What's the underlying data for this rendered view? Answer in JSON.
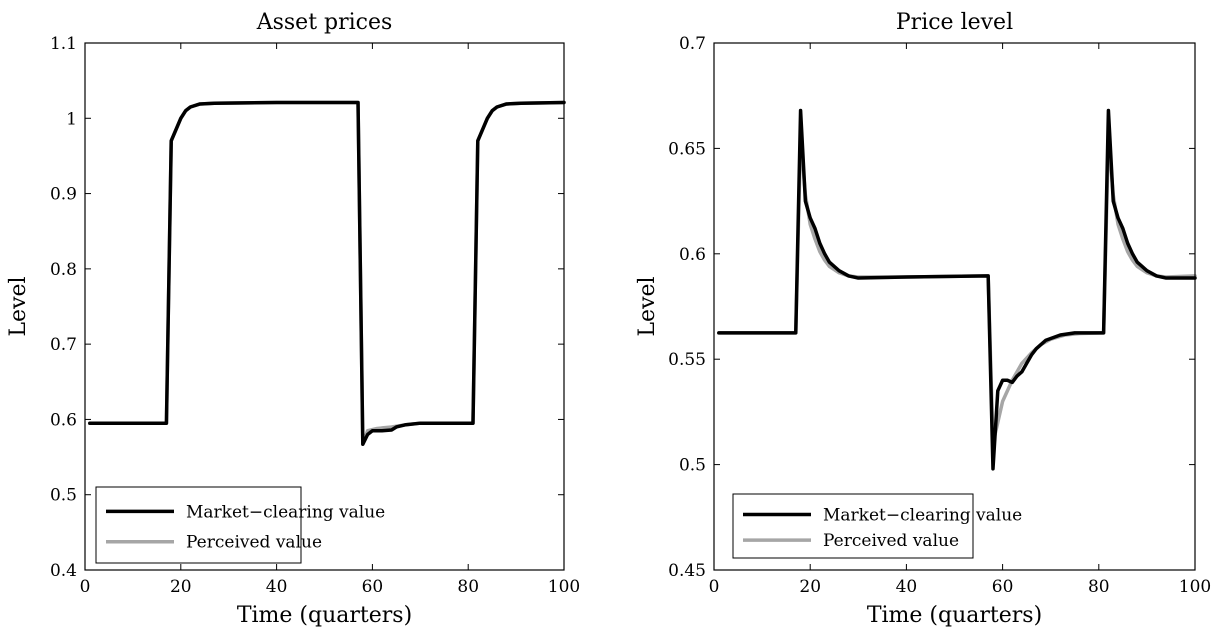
{
  "chart_data": [
    {
      "type": "line",
      "title": "Asset prices",
      "xlabel": "Time (quarters)",
      "ylabel": "Level",
      "xlim": [
        0,
        100
      ],
      "ylim": [
        0.4,
        1.1
      ],
      "xticks": [
        0,
        20,
        40,
        60,
        80,
        100
      ],
      "yticks": [
        0.4,
        0.5,
        0.6,
        0.7,
        0.8,
        0.9,
        1.0,
        1.1
      ],
      "ytick_labels": [
        "0.4",
        "0.5",
        "0.6",
        "0.7",
        "0.8",
        "0.9",
        "1",
        "1.1"
      ],
      "legend_placement": "lower-left",
      "series": [
        {
          "name": "Market−clearing value",
          "color": "#000000",
          "points": [
            [
              1,
              0.595
            ],
            [
              17,
              0.595
            ],
            [
              18,
              0.97
            ],
            [
              19,
              0.985
            ],
            [
              20,
              1.0
            ],
            [
              21,
              1.01
            ],
            [
              22,
              1.015
            ],
            [
              24,
              1.019
            ],
            [
              27,
              1.02
            ],
            [
              40,
              1.021
            ],
            [
              57,
              1.021
            ],
            [
              58,
              0.567
            ],
            [
              59,
              0.58
            ],
            [
              60,
              0.585
            ],
            [
              62,
              0.585
            ],
            [
              64,
              0.586
            ],
            [
              65,
              0.59
            ],
            [
              67,
              0.593
            ],
            [
              70,
              0.595
            ],
            [
              81,
              0.595
            ],
            [
              82,
              0.97
            ],
            [
              83,
              0.985
            ],
            [
              84,
              1.0
            ],
            [
              85,
              1.01
            ],
            [
              86,
              1.015
            ],
            [
              88,
              1.019
            ],
            [
              91,
              1.02
            ],
            [
              100,
              1.021
            ]
          ]
        },
        {
          "name": "Perceived value",
          "color": "#a6a6a6",
          "points": [
            [
              1,
              0.595
            ],
            [
              17,
              0.595
            ],
            [
              18,
              0.97
            ],
            [
              19,
              0.985
            ],
            [
              20,
              1.0
            ],
            [
              21,
              1.01
            ],
            [
              22,
              1.015
            ],
            [
              24,
              1.019
            ],
            [
              27,
              1.02
            ],
            [
              40,
              1.021
            ],
            [
              57,
              1.021
            ],
            [
              58,
              0.567
            ],
            [
              59,
              0.585
            ],
            [
              61,
              0.588
            ],
            [
              64,
              0.59
            ],
            [
              67,
              0.593
            ],
            [
              70,
              0.595
            ],
            [
              81,
              0.595
            ],
            [
              82,
              0.97
            ],
            [
              83,
              0.985
            ],
            [
              84,
              1.0
            ],
            [
              85,
              1.01
            ],
            [
              86,
              1.015
            ],
            [
              88,
              1.019
            ],
            [
              91,
              1.02
            ],
            [
              100,
              1.021
            ]
          ]
        }
      ]
    },
    {
      "type": "line",
      "title": "Price level",
      "xlabel": "Time (quarters)",
      "ylabel": "Level",
      "xlim": [
        0,
        100
      ],
      "ylim": [
        0.45,
        0.7
      ],
      "xticks": [
        0,
        20,
        40,
        60,
        80,
        100
      ],
      "yticks": [
        0.45,
        0.5,
        0.55,
        0.6,
        0.65,
        0.7
      ],
      "ytick_labels": [
        "0.45",
        "0.5",
        "0.55",
        "0.6",
        "0.65",
        "0.7"
      ],
      "legend_placement": "lower-left",
      "series": [
        {
          "name": "Market−clearing value",
          "color": "#000000",
          "points": [
            [
              1,
              0.5625
            ],
            [
              17,
              0.5625
            ],
            [
              18,
              0.668
            ],
            [
              19,
              0.625
            ],
            [
              20,
              0.617
            ],
            [
              21,
              0.612
            ],
            [
              22,
              0.605
            ],
            [
              23,
              0.6
            ],
            [
              24,
              0.596
            ],
            [
              26,
              0.592
            ],
            [
              28,
              0.5895
            ],
            [
              30,
              0.5885
            ],
            [
              40,
              0.589
            ],
            [
              57,
              0.5895
            ],
            [
              58,
              0.498
            ],
            [
              59,
              0.535
            ],
            [
              60,
              0.54
            ],
            [
              61,
              0.54
            ],
            [
              62,
              0.539
            ],
            [
              63,
              0.542
            ],
            [
              64,
              0.544
            ],
            [
              65,
              0.548
            ],
            [
              66,
              0.552
            ],
            [
              67,
              0.555
            ],
            [
              69,
              0.559
            ],
            [
              72,
              0.5615
            ],
            [
              75,
              0.5625
            ],
            [
              81,
              0.5625
            ],
            [
              82,
              0.668
            ],
            [
              83,
              0.625
            ],
            [
              84,
              0.617
            ],
            [
              85,
              0.612
            ],
            [
              86,
              0.605
            ],
            [
              87,
              0.6
            ],
            [
              88,
              0.596
            ],
            [
              90,
              0.592
            ],
            [
              92,
              0.5895
            ],
            [
              94,
              0.5885
            ],
            [
              100,
              0.5885
            ]
          ]
        },
        {
          "name": "Perceived value",
          "color": "#a6a6a6",
          "points": [
            [
              1,
              0.5625
            ],
            [
              17,
              0.5625
            ],
            [
              18,
              0.655
            ],
            [
              19,
              0.628
            ],
            [
              20,
              0.614
            ],
            [
              21,
              0.607
            ],
            [
              22,
              0.601
            ],
            [
              23,
              0.597
            ],
            [
              24,
              0.594
            ],
            [
              26,
              0.591
            ],
            [
              28,
              0.5895
            ],
            [
              30,
              0.589
            ],
            [
              40,
              0.589
            ],
            [
              57,
              0.5895
            ],
            [
              58,
              0.51
            ],
            [
              59,
              0.52
            ],
            [
              60,
              0.53
            ],
            [
              62,
              0.54
            ],
            [
              64,
              0.548
            ],
            [
              66,
              0.553
            ],
            [
              68,
              0.557
            ],
            [
              70,
              0.5595
            ],
            [
              73,
              0.5615
            ],
            [
              76,
              0.5622
            ],
            [
              81,
              0.5625
            ],
            [
              82,
              0.655
            ],
            [
              83,
              0.628
            ],
            [
              84,
              0.614
            ],
            [
              85,
              0.607
            ],
            [
              86,
              0.601
            ],
            [
              87,
              0.597
            ],
            [
              88,
              0.594
            ],
            [
              90,
              0.591
            ],
            [
              92,
              0.5895
            ],
            [
              94,
              0.589
            ],
            [
              100,
              0.5895
            ]
          ]
        }
      ]
    }
  ]
}
